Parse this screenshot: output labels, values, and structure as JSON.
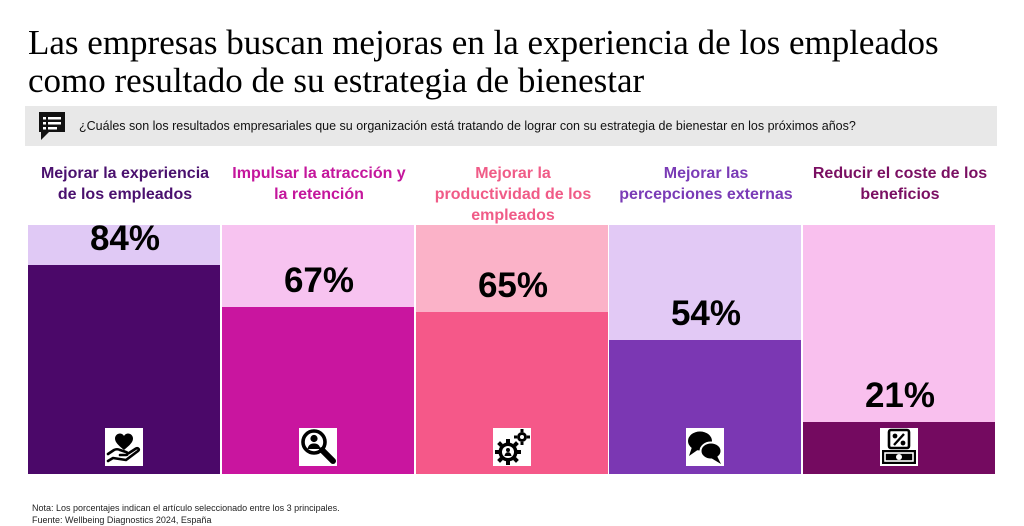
{
  "title_line1": "Las empresas buscan mejoras en la experiencia de los empleados",
  "title_line2": "como resultado de su estrategia de bienestar",
  "question": "¿Cuáles son los resultados empresariales que su organización está tratando de lograr con su estrategia de bienestar en los próximos años?",
  "chart_data": {
    "type": "bar",
    "categories": [
      "Mejorar la experiencia de los empleados",
      "Impulsar la atracción y la retención",
      "Mejorar la productividad de los empleados",
      "Mejorar las percepciones externas",
      "Reducir el coste de los beneficios"
    ],
    "values": [
      84,
      67,
      65,
      54,
      21
    ],
    "value_labels": [
      "84%",
      "67%",
      "65%",
      "54%",
      "21%"
    ],
    "ylim": [
      0,
      100
    ],
    "columns": [
      {
        "label_lines": [
          "Mejorar la experiencia",
          "de los empleados"
        ],
        "label_color": "#4a106e",
        "bar_color": "#4b0869",
        "bg_color": "#e0c9f5",
        "icon": "hand-heart-icon"
      },
      {
        "label_lines": [
          "Impulsar la atracción y",
          "la retención"
        ],
        "label_color": "#c4169c",
        "bar_color": "#c9159f",
        "bg_color": "#f7c3f0",
        "icon": "magnifier-person-icon"
      },
      {
        "label_lines": [
          "Mejorar la",
          "productividad de los",
          "empleados"
        ],
        "label_color": "#f05b87",
        "bar_color": "#f55889",
        "bg_color": "#fbb2c8",
        "icon": "gears-person-icon"
      },
      {
        "label_lines": [
          "Mejorar las",
          "percepciones externas"
        ],
        "label_color": "#7a3bb6",
        "bar_color": "#7b37b3",
        "bg_color": "#e2c9f5",
        "icon": "chat-bubbles-icon"
      },
      {
        "label_lines": [
          "Reducir el coste de los",
          "beneficios"
        ],
        "label_color": "#7a0f62",
        "bar_color": "#740a60",
        "bg_color": "#f9c0ee",
        "icon": "discount-money-icon"
      }
    ]
  },
  "note": "Nota: Los porcentajes indican el artículo seleccionado entre los 3 principales.",
  "source": "Fuente: Wellbeing Diagnostics 2024, España"
}
